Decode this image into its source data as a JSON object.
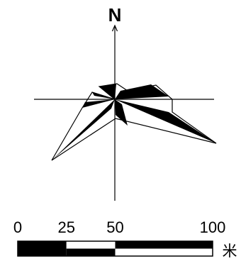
{
  "north_arrow": {
    "label": "N"
  },
  "wind_rose": {
    "description_colors": {
      "ink": "#000000",
      "paper": "#ffffff"
    }
  },
  "scale_bar": {
    "ticks": [
      {
        "label": "0",
        "value": 0
      },
      {
        "label": "25",
        "value": 25
      },
      {
        "label": "50",
        "value": 50
      },
      {
        "label": "100",
        "value": 100
      }
    ],
    "unit": "米",
    "segments": [
      {
        "from": 0,
        "to": 25,
        "top": "black",
        "bottom": "black"
      },
      {
        "from": 25,
        "to": 50,
        "top": "white",
        "bottom": "black"
      },
      {
        "from": 50,
        "to": 100,
        "top": "black",
        "bottom": "white"
      }
    ]
  }
}
